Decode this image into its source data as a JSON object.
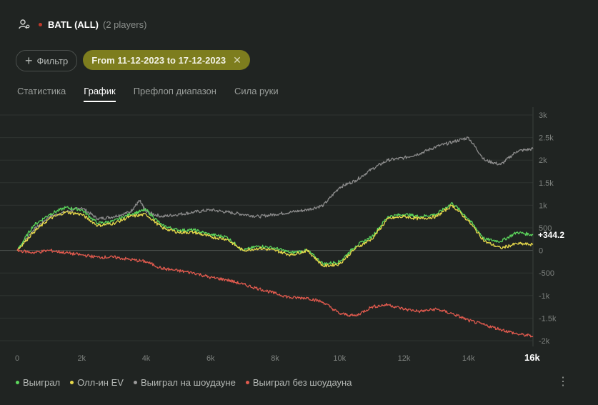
{
  "header": {
    "icon": "user-settings-icon",
    "table_name": "BATL (ALL)",
    "players": "(2 players)"
  },
  "filters": {
    "add_label": "Фильтр",
    "date_range": "From 11-12-2023 to 17-12-2023"
  },
  "tabs": [
    {
      "label": "Статистика",
      "active": false
    },
    {
      "label": "График",
      "active": true
    },
    {
      "label": "Префлоп диапазон",
      "active": false
    },
    {
      "label": "Сила руки",
      "active": false
    }
  ],
  "chart_data": {
    "type": "line",
    "x_ticks": [
      "0",
      "2k",
      "4k",
      "6k",
      "8k",
      "10k",
      "12k",
      "14k",
      "16k"
    ],
    "y_ticks": [
      "3k",
      "2.5k",
      "2k",
      "1.5k",
      "1k",
      "500",
      "0",
      "-500",
      "-1k",
      "-1.5k",
      "-2k"
    ],
    "xlim": [
      0,
      16000
    ],
    "ylim": [
      -2000,
      3000
    ],
    "final_label": "+344.2",
    "series": [
      {
        "name": "Выиграл на шоудауне",
        "color": "#8c8c8c",
        "x": [
          0,
          500,
          1000,
          1500,
          2000,
          2500,
          3000,
          3500,
          3800,
          4000,
          4500,
          5000,
          5500,
          6000,
          6500,
          7000,
          7500,
          8000,
          8500,
          9000,
          9500,
          10000,
          10500,
          11000,
          11500,
          12000,
          12500,
          13000,
          13500,
          14000,
          14500,
          15000,
          15500,
          16000
        ],
        "y": [
          0,
          450,
          750,
          850,
          950,
          700,
          750,
          850,
          1100,
          850,
          750,
          800,
          850,
          900,
          850,
          800,
          750,
          800,
          850,
          900,
          1000,
          1400,
          1550,
          1800,
          2000,
          2050,
          2150,
          2300,
          2400,
          2500,
          2000,
          1900,
          2200,
          2250
        ]
      },
      {
        "name": "Выиграл",
        "color": "#5cd65c",
        "x": [
          0,
          500,
          1000,
          1500,
          2000,
          2500,
          3000,
          3500,
          4000,
          4500,
          5000,
          5500,
          6000,
          6500,
          7000,
          7500,
          8000,
          8500,
          9000,
          9500,
          10000,
          10500,
          11000,
          11500,
          12000,
          12500,
          13000,
          13500,
          14000,
          14500,
          15000,
          15500,
          16000
        ],
        "y": [
          0,
          550,
          800,
          950,
          900,
          600,
          650,
          800,
          900,
          550,
          450,
          450,
          350,
          300,
          0,
          100,
          50,
          -50,
          0,
          -300,
          -250,
          100,
          300,
          750,
          800,
          750,
          800,
          1050,
          700,
          250,
          200,
          400,
          344
        ]
      },
      {
        "name": "Олл-ин EV",
        "color": "#e6d84a",
        "x": [
          0,
          500,
          1000,
          1500,
          2000,
          2500,
          3000,
          3500,
          4000,
          4500,
          5000,
          5500,
          6000,
          6500,
          7000,
          7500,
          8000,
          8500,
          9000,
          9500,
          10000,
          10500,
          11000,
          11500,
          12000,
          12500,
          13000,
          13500,
          14000,
          14500,
          15000,
          15500,
          16000
        ],
        "y": [
          0,
          400,
          700,
          850,
          800,
          550,
          600,
          750,
          800,
          500,
          400,
          400,
          300,
          250,
          0,
          50,
          0,
          -100,
          0,
          -350,
          -300,
          50,
          250,
          700,
          750,
          700,
          750,
          1000,
          650,
          200,
          50,
          150,
          130
        ]
      },
      {
        "name": "Выиграл без шоудауна",
        "color": "#e05a4e",
        "x": [
          0,
          500,
          1000,
          1500,
          2000,
          2500,
          3000,
          3500,
          4000,
          4500,
          5000,
          5500,
          6000,
          6500,
          7000,
          7500,
          8000,
          8500,
          9000,
          9500,
          10000,
          10500,
          11000,
          11500,
          12000,
          12500,
          13000,
          13500,
          14000,
          14500,
          15000,
          15500,
          16000
        ],
        "y": [
          0,
          -50,
          0,
          -50,
          -100,
          -150,
          -150,
          -200,
          -250,
          -400,
          -450,
          -500,
          -600,
          -650,
          -750,
          -850,
          -950,
          -1050,
          -1050,
          -1150,
          -1400,
          -1450,
          -1250,
          -1200,
          -1300,
          -1350,
          -1300,
          -1400,
          -1550,
          -1650,
          -1750,
          -1850,
          -1900
        ]
      }
    ]
  },
  "legend": [
    {
      "label": "Выиграл",
      "color": "#5cd65c"
    },
    {
      "label": "Олл-ин EV",
      "color": "#e6d84a"
    },
    {
      "label": "Выиграл на шоудауне",
      "color": "#9a9a9a"
    },
    {
      "label": "Выиграл без шоудауна",
      "color": "#e05a4e"
    }
  ],
  "more_icon": "more-vertical-icon"
}
